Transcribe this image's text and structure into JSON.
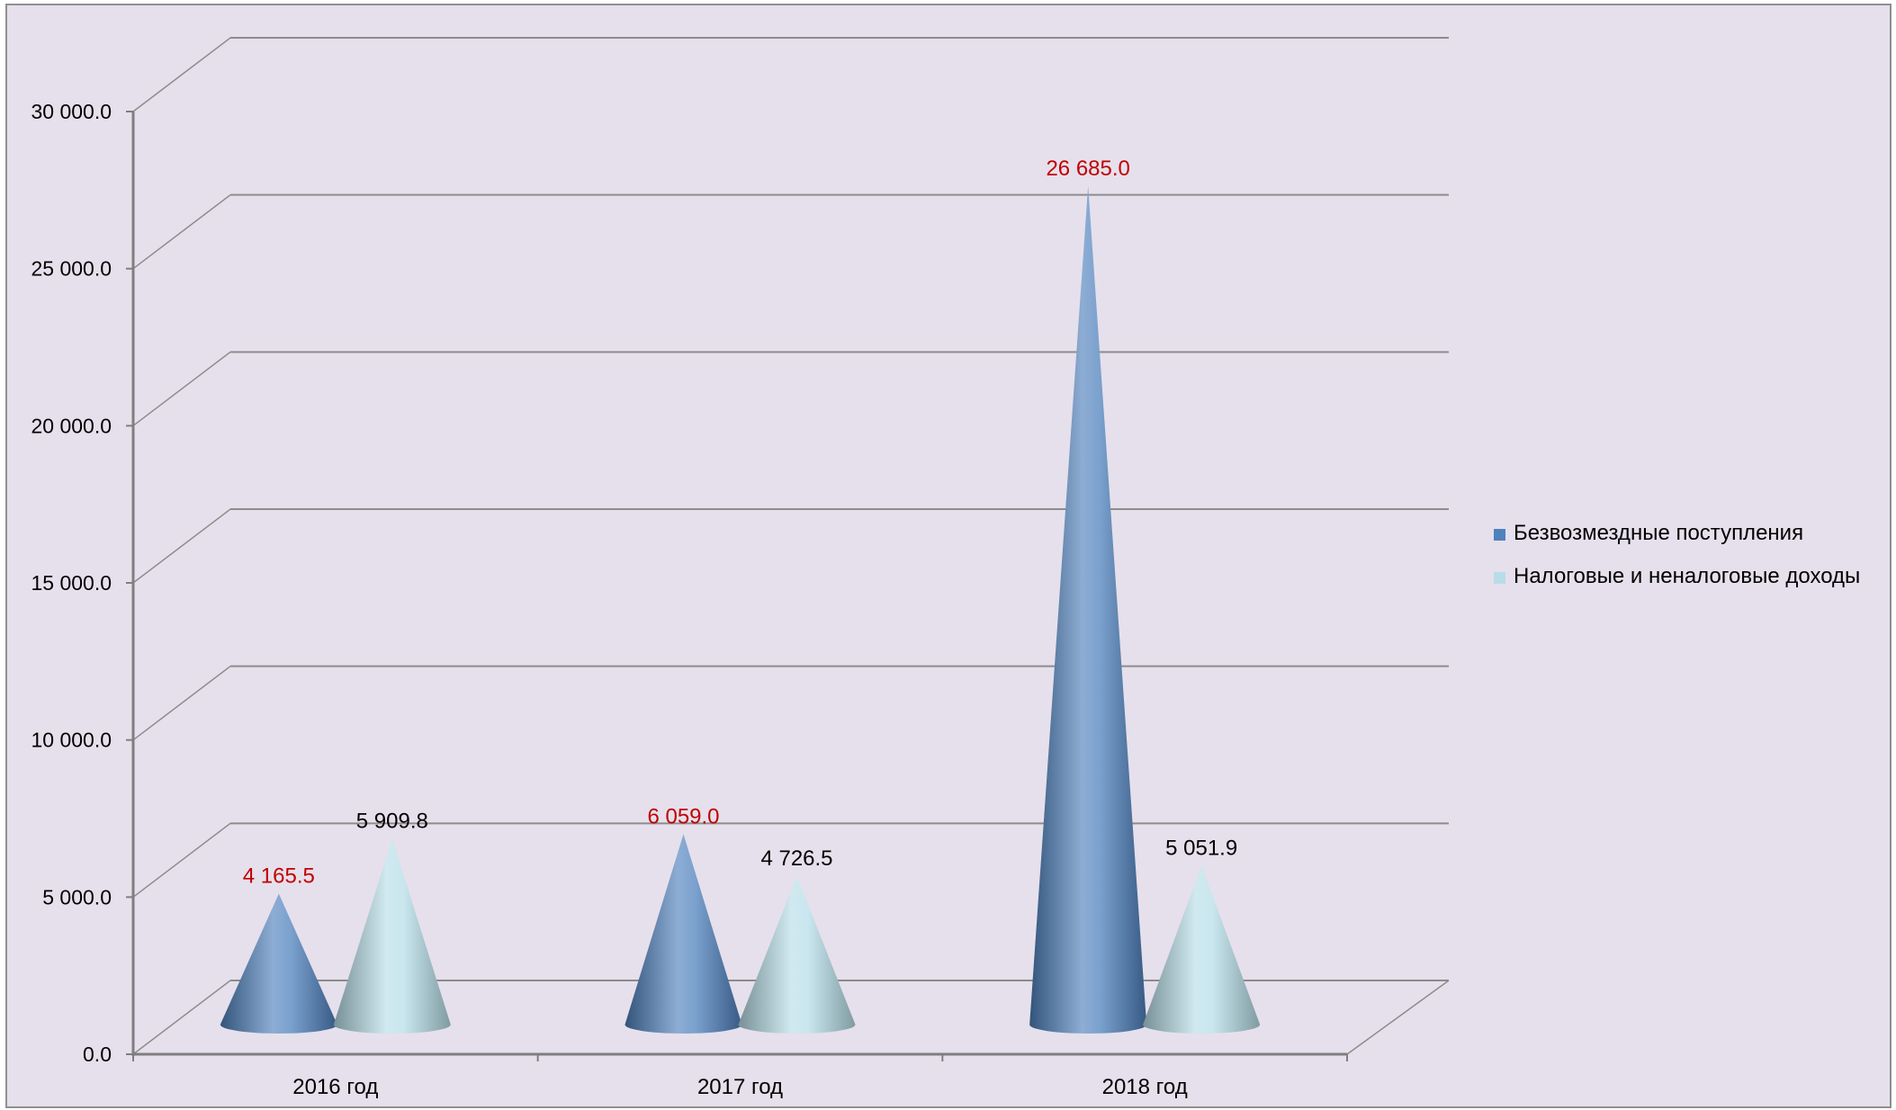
{
  "chart_data": {
    "type": "bar",
    "style": "3d-cone",
    "title": "",
    "xlabel": "",
    "ylabel": "",
    "categories": [
      "2016 год",
      "2017 год",
      "2018 год"
    ],
    "ylim": [
      0,
      30000
    ],
    "yticks": [
      0,
      5000,
      10000,
      15000,
      20000,
      25000,
      30000
    ],
    "ytick_labels": [
      "0.0",
      "5 000.0",
      "10 000.0",
      "15 000.0",
      "20 000.0",
      "25 000.0",
      "30 000.0"
    ],
    "grid": true,
    "legend_position": "right",
    "series": [
      {
        "name": "Безвозмездные поступления",
        "values": [
          4165.5,
          6059.0,
          26685.0
        ],
        "labels": [
          "4 165.5",
          "6 059.0",
          "26 685.0"
        ],
        "color": "#4f81bd",
        "label_color": "#c00000"
      },
      {
        "name": "Налоговые и неналоговые доходы",
        "values": [
          5909.8,
          4726.5,
          5051.9
        ],
        "labels": [
          "5 909.8",
          "4 726.5",
          "5 051.9"
        ],
        "color": "#b7dde8",
        "label_color": "#000000"
      }
    ]
  }
}
